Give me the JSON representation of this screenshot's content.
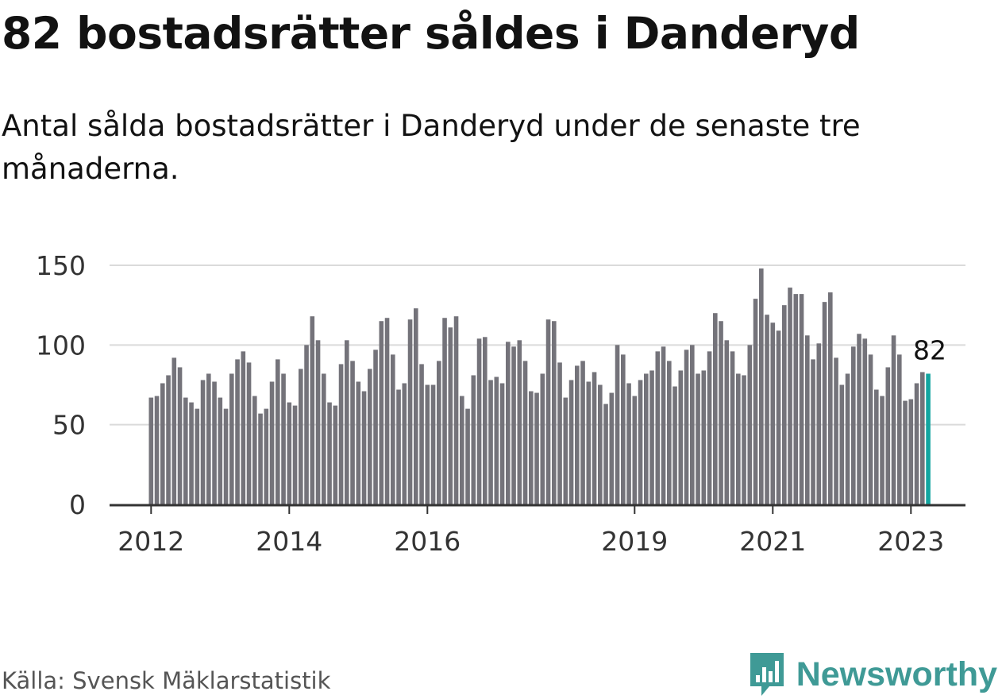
{
  "title": "82 bostadsrätter såldes i Danderyd",
  "subtitle": "Antal sålda bostadsrätter i Danderyd under de senaste tre månaderna.",
  "source": "Källa: Svensk Mäklarstatistik",
  "brand": {
    "name": "Newsworthy",
    "icon": "newsworthy-logo-icon",
    "color": "#3f9a96"
  },
  "colors": {
    "bar": "#74737a",
    "highlight": "#12a5a0",
    "grid": "#dadada",
    "axis": "#333333",
    "text": "#333333"
  },
  "chart_data": {
    "type": "bar",
    "title": "82 bostadsrätter såldes i Danderyd",
    "xlabel": "",
    "ylabel": "",
    "ylim": [
      0,
      150
    ],
    "yticks": [
      0,
      50,
      100,
      150
    ],
    "grid": true,
    "start": "2012-01",
    "xtick_labels": [
      {
        "label": "2012",
        "index": 0
      },
      {
        "label": "2014",
        "index": 24
      },
      {
        "label": "2016",
        "index": 48
      },
      {
        "label": "2019",
        "index": 84
      },
      {
        "label": "2021",
        "index": 108
      },
      {
        "label": "2023",
        "index": 132
      }
    ],
    "annotation": {
      "text": "82",
      "index": 135
    },
    "values": [
      67,
      68,
      76,
      81,
      92,
      86,
      67,
      64,
      60,
      78,
      82,
      77,
      67,
      60,
      82,
      91,
      96,
      89,
      68,
      57,
      60,
      77,
      91,
      82,
      64,
      62,
      85,
      100,
      118,
      103,
      82,
      64,
      62,
      88,
      103,
      90,
      77,
      71,
      85,
      97,
      115,
      117,
      94,
      72,
      76,
      116,
      123,
      88,
      75,
      75,
      90,
      117,
      111,
      118,
      68,
      60,
      81,
      104,
      105,
      78,
      80,
      76,
      102,
      99,
      103,
      90,
      71,
      70,
      82,
      116,
      115,
      89,
      67,
      78,
      87,
      90,
      77,
      83,
      75,
      63,
      70,
      100,
      94,
      76,
      68,
      78,
      82,
      84,
      96,
      99,
      90,
      74,
      84,
      97,
      100,
      82,
      84,
      96,
      120,
      115,
      103,
      96,
      82,
      81,
      100,
      129,
      148,
      119,
      114,
      109,
      125,
      136,
      132,
      132,
      106,
      91,
      101,
      127,
      133,
      92,
      75,
      82,
      99,
      107,
      104,
      94,
      72,
      68,
      86,
      106,
      94,
      65,
      66,
      76,
      83,
      82
    ]
  }
}
